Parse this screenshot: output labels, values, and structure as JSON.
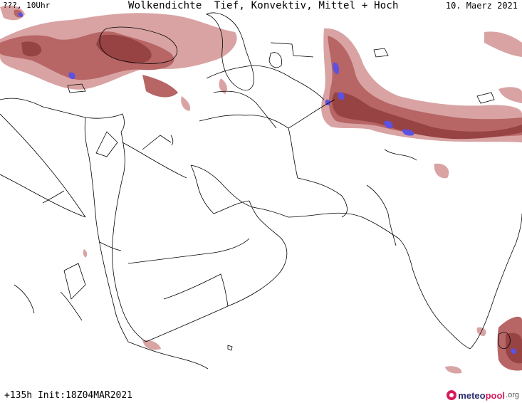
{
  "header": {
    "left": "???, 10Uhr",
    "title": "Wolkendichte  Tief, Konvektiv, Mittel + Hoch",
    "date": "10. Maerz 2021"
  },
  "footer": {
    "left": "+135h Init:18Z04MAR2021"
  },
  "logo": {
    "part1": "meteo",
    "part2": "pool",
    "part3": ".org"
  },
  "colors": {
    "cloud_dark": "#8c2f2f",
    "cloud_mid": "#b05555",
    "cloud_light": "#d59a9a",
    "cloud_high": "#4b3fe0",
    "border": "#000000"
  }
}
